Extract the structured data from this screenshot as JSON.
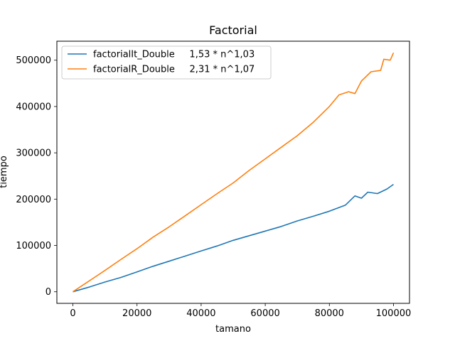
{
  "chart_data": {
    "type": "line",
    "title": "Factorial",
    "xlabel": "tamano",
    "ylabel": "tiempo",
    "xlim": [
      -5000,
      105000
    ],
    "ylim": [
      -25000,
      541000
    ],
    "x_ticks": [
      0,
      20000,
      40000,
      60000,
      80000,
      100000
    ],
    "y_ticks": [
      0,
      100000,
      200000,
      300000,
      400000,
      500000
    ],
    "grid": false,
    "legend_position": "top-left",
    "series": [
      {
        "name": "factorialIt_Double     1,53 * n^1,03",
        "color": "#1f77b4",
        "points": [
          [
            0,
            0
          ],
          [
            5000,
            10000
          ],
          [
            10000,
            21000
          ],
          [
            15000,
            31000
          ],
          [
            20000,
            43000
          ],
          [
            25000,
            55000
          ],
          [
            30000,
            66000
          ],
          [
            35000,
            77000
          ],
          [
            40000,
            88000
          ],
          [
            45000,
            99000
          ],
          [
            50000,
            111000
          ],
          [
            55000,
            121000
          ],
          [
            60000,
            131000
          ],
          [
            65000,
            141000
          ],
          [
            70000,
            153000
          ],
          [
            75000,
            163000
          ],
          [
            80000,
            174000
          ],
          [
            85000,
            187000
          ],
          [
            88000,
            207000
          ],
          [
            90000,
            202000
          ],
          [
            92000,
            215000
          ],
          [
            95000,
            212000
          ],
          [
            98000,
            222000
          ],
          [
            100000,
            232000
          ]
        ]
      },
      {
        "name": "factorialR_Double     2,31 * n^1,07",
        "color": "#ff7f0e",
        "points": [
          [
            0,
            0
          ],
          [
            5000,
            23000
          ],
          [
            10000,
            46000
          ],
          [
            15000,
            70000
          ],
          [
            20000,
            93000
          ],
          [
            25000,
            118000
          ],
          [
            30000,
            140000
          ],
          [
            35000,
            164000
          ],
          [
            40000,
            188000
          ],
          [
            45000,
            212000
          ],
          [
            50000,
            235000
          ],
          [
            55000,
            262000
          ],
          [
            60000,
            287000
          ],
          [
            65000,
            312000
          ],
          [
            70000,
            337000
          ],
          [
            75000,
            366000
          ],
          [
            80000,
            400000
          ],
          [
            83000,
            425000
          ],
          [
            86000,
            432000
          ],
          [
            88000,
            428000
          ],
          [
            90000,
            455000
          ],
          [
            93000,
            475000
          ],
          [
            96000,
            478000
          ],
          [
            97000,
            502000
          ],
          [
            99000,
            500000
          ],
          [
            100000,
            516000
          ]
        ]
      }
    ]
  }
}
